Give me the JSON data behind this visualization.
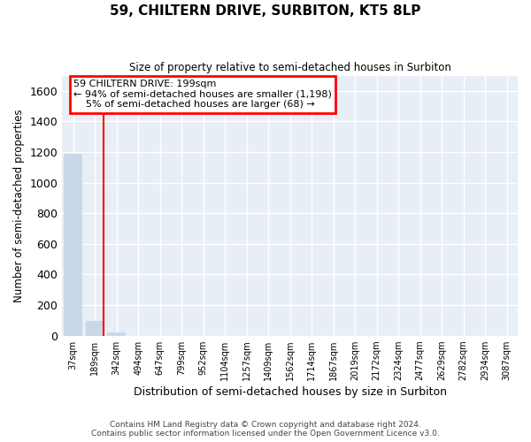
{
  "title": "59, CHILTERN DRIVE, SURBITON, KT5 8LP",
  "subtitle": "Size of property relative to semi-detached houses in Surbiton",
  "xlabel": "Distribution of semi-detached houses by size in Surbiton",
  "ylabel": "Number of semi-detached properties",
  "categories": [
    "37sqm",
    "189sqm",
    "342sqm",
    "494sqm",
    "647sqm",
    "799sqm",
    "952sqm",
    "1104sqm",
    "1257sqm",
    "1409sqm",
    "1562sqm",
    "1714sqm",
    "1867sqm",
    "2019sqm",
    "2172sqm",
    "2324sqm",
    "2477sqm",
    "2629sqm",
    "2782sqm",
    "2934sqm",
    "3087sqm"
  ],
  "bar_heights": [
    1190,
    95,
    18,
    0,
    0,
    0,
    0,
    0,
    0,
    0,
    0,
    0,
    0,
    0,
    0,
    0,
    0,
    0,
    0,
    0,
    0
  ],
  "bar_color": "#c8d8e8",
  "vline_color": "red",
  "vline_bar_index": 1,
  "annotation_line1": "59 CHILTERN DRIVE: 199sqm",
  "annotation_line2": "← 94% of semi-detached houses are smaller (1,198)",
  "annotation_line3": "    5% of semi-detached houses are larger (68) →",
  "annotation_box_edgecolor": "red",
  "annotation_fill": "white",
  "ylim": [
    0,
    1700
  ],
  "yticks": [
    0,
    200,
    400,
    600,
    800,
    1000,
    1200,
    1400,
    1600
  ],
  "bg_color": "#e8eef5",
  "grid_color": "white",
  "footer_line1": "Contains HM Land Registry data © Crown copyright and database right 2024.",
  "footer_line2": "Contains public sector information licensed under the Open Government Licence v3.0."
}
